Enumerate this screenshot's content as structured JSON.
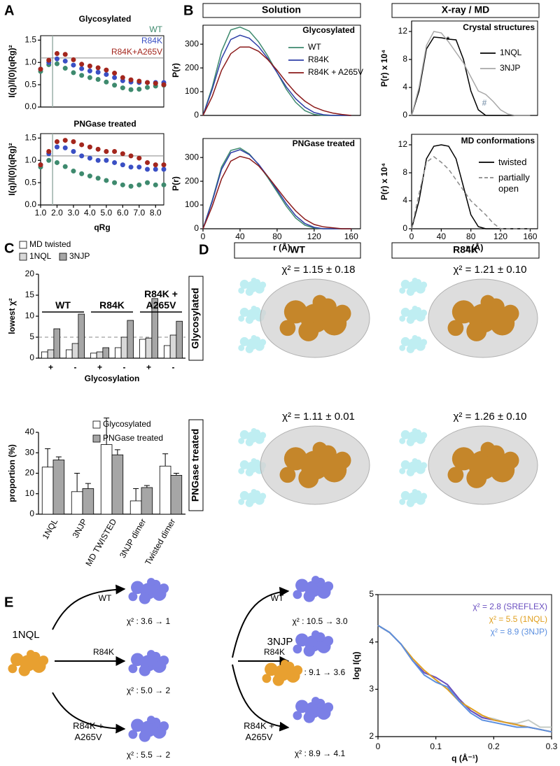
{
  "chart_data": [
    {
      "type": "scatter",
      "title": "Glycosylated",
      "x": [
        1.0,
        1.5,
        2.0,
        2.5,
        3.0,
        3.5,
        4.0,
        4.5,
        5.0,
        5.5,
        6.0,
        6.5,
        7.0,
        7.5,
        8.0,
        8.5
      ],
      "series": [
        {
          "name": "WT",
          "color": "#3e8a6e",
          "values": [
            0.8,
            0.95,
            0.97,
            0.87,
            0.77,
            0.71,
            0.66,
            0.62,
            0.56,
            0.49,
            0.43,
            0.39,
            0.4,
            0.44,
            0.47,
            0.49
          ]
        },
        {
          "name": "R84K",
          "color": "#3a4fc4",
          "values": [
            0.85,
            1.0,
            1.08,
            1.03,
            0.94,
            0.86,
            0.81,
            0.78,
            0.73,
            0.66,
            0.59,
            0.56,
            0.55,
            0.55,
            0.55,
            0.55
          ]
        },
        {
          "name": "R84K+A265V",
          "color": "#a3261d",
          "values": [
            0.85,
            1.05,
            1.2,
            1.18,
            1.06,
            0.96,
            0.92,
            0.88,
            0.83,
            0.76,
            0.66,
            0.61,
            0.58,
            0.55,
            0.53,
            0.5
          ]
        }
      ],
      "xlim": [
        1,
        8.5
      ],
      "ylim": [
        0,
        1.6
      ],
      "yticks": [
        {
          "value": 0,
          "label": "0.0"
        },
        0.5,
        {
          "value": 1,
          "label": "1.0"
        },
        1.5
      ],
      "y_label": "I(q)/I(0)(qRg)²",
      "vline": 1.73,
      "hline": 1.1,
      "legend": "upper right"
    },
    {
      "type": "scatter",
      "title": "PNGase treated",
      "x": [
        1.0,
        1.5,
        2.0,
        2.5,
        3.0,
        3.5,
        4.0,
        4.5,
        5.0,
        5.5,
        6.0,
        6.5,
        7.0,
        7.5,
        8.0,
        8.5
      ],
      "series": [
        {
          "color": "#3e8a6e",
          "values": [
            0.85,
            1.0,
            0.95,
            0.86,
            0.76,
            0.7,
            0.65,
            0.6,
            0.55,
            0.5,
            0.45,
            0.42,
            0.45,
            0.5,
            0.45,
            0.45
          ]
        },
        {
          "color": "#3a4fc4",
          "values": [
            0.9,
            1.15,
            1.3,
            1.28,
            1.2,
            1.1,
            1.05,
            1.0,
            1.0,
            0.95,
            0.9,
            0.85,
            0.85,
            0.8,
            0.8,
            0.8
          ]
        },
        {
          "color": "#a3261d",
          "values": [
            0.9,
            1.2,
            1.42,
            1.45,
            1.42,
            1.35,
            1.3,
            1.25,
            1.2,
            1.2,
            1.15,
            1.1,
            1.05,
            0.95,
            0.9,
            0.9
          ]
        }
      ],
      "xlim": [
        1,
        8.5
      ],
      "ylim": [
        0,
        1.6
      ],
      "xticks": [
        {
          "value": 1,
          "label": "1.0"
        },
        {
          "value": 2,
          "label": "2.0"
        },
        {
          "value": 3,
          "label": "3.0"
        },
        {
          "value": 4,
          "label": "4.0"
        },
        {
          "value": 5,
          "label": "5.0"
        },
        {
          "value": 6,
          "label": "6.0"
        },
        {
          "value": 7,
          "label": "7.0"
        },
        {
          "value": 8,
          "label": "8.0"
        }
      ],
      "yticks": [
        {
          "value": 0,
          "label": "0.0"
        },
        0.5,
        {
          "value": 1,
          "label": "1.0"
        },
        1.5
      ],
      "x_label": "qRg",
      "y_label": "I(q)/I(0)(qRg)²",
      "vline": 1.73,
      "hline": 1.1
    },
    {
      "type": "line",
      "title": "Glycosylated",
      "x": [
        0,
        10,
        20,
        30,
        40,
        50,
        60,
        70,
        80,
        90,
        100,
        110,
        120,
        130,
        140,
        150,
        160
      ],
      "series": [
        {
          "name": "WT",
          "color": "#3e8a6e",
          "values": [
            0,
            120,
            270,
            360,
            372,
            355,
            310,
            250,
            180,
            110,
            55,
            20,
            4,
            0,
            0,
            0,
            0
          ]
        },
        {
          "name": "R84K",
          "color": "#2f3fa8",
          "values": [
            0,
            110,
            240,
            320,
            338,
            325,
            290,
            240,
            180,
            120,
            70,
            35,
            12,
            3,
            0,
            0,
            0
          ]
        },
        {
          "name": "R84K + A265V",
          "color": "#8b1a1a",
          "values": [
            0,
            80,
            190,
            260,
            288,
            288,
            270,
            235,
            190,
            140,
            95,
            60,
            35,
            20,
            10,
            4,
            0
          ]
        }
      ],
      "xlim": [
        0,
        170
      ],
      "ylim": [
        0,
        380
      ],
      "yticks": [
        0,
        100,
        200,
        300
      ],
      "y_label": "P(r)",
      "legend": "upper right"
    },
    {
      "type": "line",
      "title": "PNGase treated",
      "x": [
        0,
        10,
        20,
        30,
        40,
        50,
        60,
        70,
        80,
        90,
        100,
        110,
        120,
        130,
        140,
        150,
        160
      ],
      "series": [
        {
          "color": "#3e8a6e",
          "values": [
            0,
            120,
            260,
            330,
            340,
            315,
            270,
            215,
            155,
            95,
            45,
            15,
            3,
            0,
            0,
            0,
            0
          ]
        },
        {
          "color": "#2f3fa8",
          "values": [
            0,
            115,
            250,
            320,
            333,
            312,
            272,
            220,
            163,
            105,
            55,
            22,
            6,
            0,
            0,
            0,
            0
          ]
        },
        {
          "color": "#8b1a1a",
          "values": [
            0,
            95,
            210,
            285,
            305,
            295,
            265,
            220,
            170,
            120,
            75,
            40,
            18,
            8,
            4,
            0,
            0
          ]
        }
      ],
      "xlim": [
        0,
        170
      ],
      "ylim": [
        0,
        380
      ],
      "xticks": [
        0,
        40,
        80,
        120,
        160
      ],
      "yticks": [
        0,
        100,
        200,
        300
      ],
      "x_label": "r (Å)",
      "y_label": "P(r)"
    },
    {
      "type": "line",
      "title": "Crystal structures",
      "x": [
        0,
        10,
        20,
        30,
        40,
        50,
        60,
        70,
        80,
        90,
        100,
        110,
        120,
        130,
        140,
        150,
        160
      ],
      "series": [
        {
          "name": "1NQL",
          "color": "#000000",
          "values": [
            0,
            3.5,
            9.5,
            11.2,
            11.1,
            10.9,
            10.8,
            8,
            3.5,
            0.8,
            0,
            0,
            0,
            0,
            0,
            0,
            0
          ]
        },
        {
          "name": "3NJP",
          "color": "#a8a8a8",
          "values": [
            0,
            4,
            10,
            12,
            11.8,
            10.5,
            9,
            7.5,
            5.5,
            3.5,
            3,
            2,
            0.8,
            0.2,
            0,
            0,
            0
          ]
        }
      ],
      "xlim": [
        0,
        170
      ],
      "ylim": [
        0,
        13.5
      ],
      "yticks": [
        0,
        4,
        8,
        12
      ],
      "y_label": "P(r) x 10⁴",
      "legend": "upper right",
      "annotations": [
        {
          "text": "*",
          "color": "#000000"
        },
        {
          "text": "#",
          "color": "#8fa4b8"
        }
      ]
    },
    {
      "type": "line",
      "title": "MD conformations",
      "x": [
        0,
        10,
        20,
        30,
        40,
        50,
        60,
        70,
        80,
        90,
        100,
        110,
        120,
        130,
        140,
        150,
        160
      ],
      "series": [
        {
          "name": "twisted",
          "color": "#000000",
          "values": [
            0,
            4,
            10,
            11.8,
            12,
            11.8,
            10,
            6,
            2,
            0.3,
            0,
            0,
            0,
            0,
            0,
            0,
            0
          ]
        },
        {
          "name": "partially open",
          "color": "#8a8a8a",
          "dash": true,
          "values": [
            0,
            5,
            9.5,
            10.3,
            9.5,
            8.5,
            7,
            5.5,
            4,
            3,
            2,
            0.8,
            0,
            0,
            0,
            0,
            0
          ]
        }
      ],
      "xlim": [
        0,
        170
      ],
      "ylim": [
        0,
        13.5
      ],
      "xticks": [
        0,
        40,
        80,
        120,
        160
      ],
      "yticks": [
        0,
        4,
        8,
        12
      ],
      "x_label": "r (Å)",
      "y_label": "P(r) x 10⁴",
      "legend": "upper right"
    },
    {
      "type": "bar",
      "categories": [
        "+",
        "-",
        "+",
        "-",
        "+",
        "-"
      ],
      "group_labels": [
        "WT",
        "R84K",
        "R84K + A265V"
      ],
      "series": [
        {
          "name": "MD twisted",
          "color": "#ffffff",
          "values": [
            1.5,
            2,
            1.2,
            2.5,
            4.5,
            3
          ]
        },
        {
          "name": "1NQL",
          "color": "#d9d9d9",
          "values": [
            2,
            3.5,
            1.5,
            5,
            4.8,
            5.5
          ]
        },
        {
          "name": "3NJP",
          "color": "#a6a6a6",
          "values": [
            7,
            10.5,
            2.5,
            9,
            14.2,
            8.8
          ]
        }
      ],
      "ylim": [
        0,
        20
      ],
      "yticks": [
        0,
        5,
        10,
        15,
        20
      ],
      "y_label": "lowest χ²",
      "x_label": "Glycosylation",
      "hline": 5,
      "legend": "top"
    },
    {
      "type": "bar",
      "categories": [
        "1NQL",
        "3NJP",
        "MD TWISTED",
        "3NJP dimer",
        "Twisted dimer"
      ],
      "series": [
        {
          "name": "Glycosylated",
          "color": "#ffffff",
          "values": [
            23,
            11,
            34,
            6.5,
            23.5
          ],
          "errors": [
            9,
            9,
            13,
            6,
            6
          ]
        },
        {
          "name": "PNGase treated",
          "color": "#a6a6a6",
          "values": [
            26.5,
            12.5,
            29,
            13,
            19
          ],
          "errors": [
            1.5,
            2.5,
            2.5,
            1,
            1
          ]
        }
      ],
      "ylim": [
        0,
        40
      ],
      "yticks": [
        0,
        10,
        20,
        30,
        40
      ],
      "y_label": "proportion (%)",
      "legend": "upper right"
    },
    {
      "type": "line",
      "x": [
        0,
        0.02,
        0.04,
        0.06,
        0.08,
        0.1,
        0.12,
        0.14,
        0.16,
        0.18,
        0.2,
        0.22,
        0.24,
        0.26,
        0.28,
        0.3
      ],
      "series": [
        {
          "color": "#c5cbc5",
          "values": [
            4.35,
            4.2,
            3.95,
            3.6,
            3.35,
            3.25,
            3.1,
            2.8,
            2.55,
            2.42,
            2.38,
            2.3,
            2.28,
            2.35,
            2.2,
            2.2
          ]
        },
        {
          "name": "χ² = 2.8 (SREFLEX)",
          "color": "#6a4fc0",
          "values": [
            4.35,
            4.2,
            3.95,
            3.6,
            3.35,
            3.25,
            3.1,
            2.8,
            2.55,
            2.4,
            2.35,
            2.3,
            2.25,
            2.2,
            2.15,
            2.1
          ]
        },
        {
          "name": "χ² = 5.5 (1NQL)",
          "color": "#e0a020",
          "values": [
            4.35,
            4.2,
            3.95,
            3.65,
            3.4,
            3.2,
            3.0,
            2.75,
            2.6,
            2.45,
            2.35,
            2.3,
            2.25,
            2.2,
            2.15,
            2.1
          ]
        },
        {
          "name": "χ² = 8.9 (3NJP)",
          "color": "#5b8fe0",
          "values": [
            4.35,
            4.2,
            3.95,
            3.6,
            3.3,
            3.15,
            3.05,
            2.75,
            2.5,
            2.35,
            2.3,
            2.25,
            2.2,
            2.2,
            2.15,
            2.1
          ]
        }
      ],
      "xlim": [
        0,
        0.3
      ],
      "ylim": [
        2,
        5
      ],
      "xticks": [
        0,
        0.1,
        0.2,
        0.3
      ],
      "yticks": [
        2,
        3,
        4,
        5
      ],
      "x_label": "q (Å⁻¹)",
      "y_label": "log I(q)",
      "legend": "upper right"
    }
  ],
  "panel_labels": [
    "A",
    "B",
    "C",
    "D",
    "E"
  ],
  "panel_b": {
    "headers": [
      "Solution",
      "X-ray / MD"
    ]
  },
  "panel_d": {
    "columns": [
      "WT",
      "R84K"
    ],
    "rows": [
      "Glycosylated",
      "PNGase treated"
    ],
    "chi2": [
      [
        "χ² = 1.15 ± 0.18",
        "χ² = 1.21 ± 0.10"
      ],
      [
        "χ² = 1.11 ± 0.01",
        "χ² = 1.26 ± 0.10"
      ]
    ]
  },
  "panel_e": {
    "flows": [
      {
        "start": "1NQL",
        "targets": [
          "WT",
          "R84K",
          "R84K + A265V"
        ],
        "chi2": [
          "χ² : 3.6 → 1",
          "χ² : 5.0 → 2",
          "χ² : 5.5 → 2"
        ]
      },
      {
        "start": "3NJP",
        "targets": [
          "WT",
          "R84K",
          "R84K + A265V"
        ],
        "chi2": [
          "χ² : 10.5 → 3.0",
          "χ² : 9.1 → 3.6",
          "χ² : 8.9 → 4.1"
        ]
      }
    ]
  }
}
